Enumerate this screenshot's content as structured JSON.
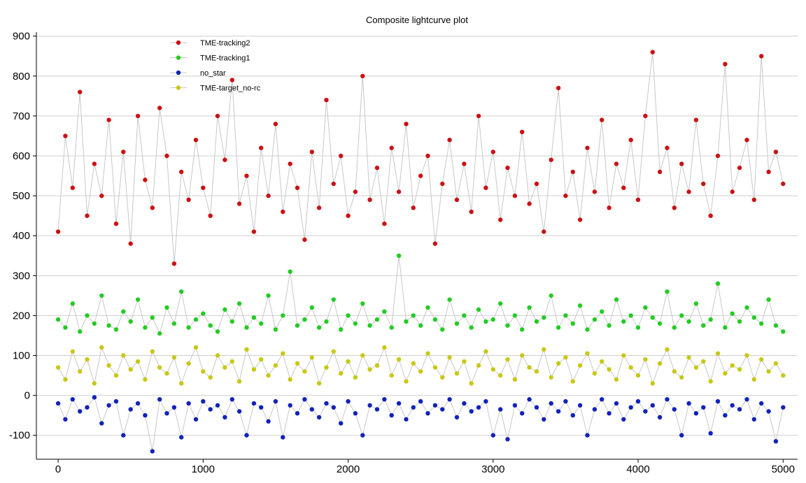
{
  "chart_data": {
    "type": "scatter",
    "title": "Composite lightcurve plot",
    "xlabel": "",
    "ylabel": "",
    "xlim": [
      -150,
      5100
    ],
    "ylim": [
      -160,
      910
    ],
    "x_ticks": [
      0,
      1000,
      2000,
      3000,
      4000,
      5000
    ],
    "y_ticks": [
      -100,
      0,
      100,
      200,
      300,
      400,
      500,
      600,
      700,
      800,
      900
    ],
    "grid": "horizontal",
    "legend_position": "top-left",
    "connecting_line_color": "#c8c8c8",
    "series": [
      {
        "name": "TME-tracking2",
        "color": "#cc1111",
        "x": [
          0,
          50,
          100,
          150,
          200,
          250,
          300,
          350,
          400,
          450,
          500,
          550,
          600,
          650,
          700,
          750,
          800,
          850,
          900,
          950,
          1000,
          1050,
          1100,
          1150,
          1200,
          1250,
          1300,
          1350,
          1400,
          1450,
          1500,
          1550,
          1600,
          1650,
          1700,
          1750,
          1800,
          1850,
          1900,
          1950,
          2000,
          2050,
          2100,
          2150,
          2200,
          2250,
          2300,
          2350,
          2400,
          2450,
          2500,
          2550,
          2600,
          2650,
          2700,
          2750,
          2800,
          2850,
          2900,
          2950,
          3000,
          3050,
          3100,
          3150,
          3200,
          3250,
          3300,
          3350,
          3400,
          3450,
          3500,
          3550,
          3600,
          3650,
          3700,
          3750,
          3800,
          3850,
          3900,
          3950,
          4000,
          4050,
          4100,
          4150,
          4200,
          4250,
          4300,
          4350,
          4400,
          4450,
          4500,
          4550,
          4600,
          4650,
          4700,
          4750,
          4800,
          4850,
          4900,
          4950,
          5000
        ],
        "y": [
          410,
          650,
          520,
          760,
          450,
          580,
          500,
          690,
          430,
          610,
          380,
          700,
          540,
          470,
          720,
          600,
          330,
          560,
          490,
          640,
          520,
          450,
          700,
          590,
          790,
          480,
          550,
          410,
          620,
          500,
          680,
          460,
          580,
          520,
          390,
          610,
          470,
          740,
          530,
          600,
          450,
          510,
          800,
          490,
          570,
          430,
          620,
          510,
          680,
          470,
          550,
          600,
          380,
          530,
          640,
          490,
          580,
          460,
          700,
          520,
          610,
          440,
          570,
          500,
          660,
          480,
          530,
          410,
          590,
          770,
          500,
          560,
          440,
          620,
          510,
          690,
          470,
          580,
          520,
          640,
          490,
          700,
          860,
          560,
          620,
          470,
          580,
          510,
          690,
          530,
          450,
          600,
          830,
          510,
          570,
          640,
          490,
          850,
          560,
          610,
          530
        ]
      },
      {
        "name": "TME-tracking1",
        "color": "#22cc22",
        "x": [
          0,
          50,
          100,
          150,
          200,
          250,
          300,
          350,
          400,
          450,
          500,
          550,
          600,
          650,
          700,
          750,
          800,
          850,
          900,
          950,
          1000,
          1050,
          1100,
          1150,
          1200,
          1250,
          1300,
          1350,
          1400,
          1450,
          1500,
          1550,
          1600,
          1650,
          1700,
          1750,
          1800,
          1850,
          1900,
          1950,
          2000,
          2050,
          2100,
          2150,
          2200,
          2250,
          2300,
          2350,
          2400,
          2450,
          2500,
          2550,
          2600,
          2650,
          2700,
          2750,
          2800,
          2850,
          2900,
          2950,
          3000,
          3050,
          3100,
          3150,
          3200,
          3250,
          3300,
          3350,
          3400,
          3450,
          3500,
          3550,
          3600,
          3650,
          3700,
          3750,
          3800,
          3850,
          3900,
          3950,
          4000,
          4050,
          4100,
          4150,
          4200,
          4250,
          4300,
          4350,
          4400,
          4450,
          4500,
          4550,
          4600,
          4650,
          4700,
          4750,
          4800,
          4850,
          4900,
          4950,
          5000
        ],
        "y": [
          190,
          170,
          230,
          160,
          200,
          180,
          250,
          175,
          165,
          210,
          185,
          240,
          170,
          195,
          155,
          220,
          180,
          260,
          170,
          190,
          205,
          175,
          160,
          215,
          185,
          230,
          170,
          195,
          180,
          250,
          165,
          200,
          310,
          175,
          190,
          220,
          170,
          185,
          240,
          165,
          200,
          180,
          230,
          175,
          190,
          210,
          170,
          350,
          185,
          200,
          175,
          220,
          190,
          165,
          240,
          180,
          200,
          170,
          215,
          185,
          190,
          230,
          175,
          200,
          165,
          220,
          185,
          195,
          250,
          170,
          200,
          180,
          225,
          165,
          190,
          210,
          175,
          240,
          185,
          200,
          170,
          220,
          195,
          180,
          260,
          170,
          200,
          185,
          230,
          175,
          190,
          280,
          170,
          205,
          185,
          220,
          195,
          180,
          240,
          175,
          160
        ]
      },
      {
        "name": "no_star",
        "color": "#1122bb",
        "x": [
          0,
          50,
          100,
          150,
          200,
          250,
          300,
          350,
          400,
          450,
          500,
          550,
          600,
          650,
          700,
          750,
          800,
          850,
          900,
          950,
          1000,
          1050,
          1100,
          1150,
          1200,
          1250,
          1300,
          1350,
          1400,
          1450,
          1500,
          1550,
          1600,
          1650,
          1700,
          1750,
          1800,
          1850,
          1900,
          1950,
          2000,
          2050,
          2100,
          2150,
          2200,
          2250,
          2300,
          2350,
          2400,
          2450,
          2500,
          2550,
          2600,
          2650,
          2700,
          2750,
          2800,
          2850,
          2900,
          2950,
          3000,
          3050,
          3100,
          3150,
          3200,
          3250,
          3300,
          3350,
          3400,
          3450,
          3500,
          3550,
          3600,
          3650,
          3700,
          3750,
          3800,
          3850,
          3900,
          3950,
          4000,
          4050,
          4100,
          4150,
          4200,
          4250,
          4300,
          4350,
          4400,
          4450,
          4500,
          4550,
          4600,
          4650,
          4700,
          4750,
          4800,
          4850,
          4900,
          4950,
          5000
        ],
        "y": [
          -20,
          -60,
          -10,
          -40,
          -30,
          -5,
          -70,
          -25,
          -15,
          -100,
          -35,
          -20,
          -50,
          -140,
          -10,
          -45,
          -30,
          -105,
          -20,
          -60,
          -15,
          -35,
          -25,
          -55,
          -10,
          -40,
          -100,
          -20,
          -30,
          -65,
          -15,
          -105,
          -25,
          -45,
          -10,
          -35,
          -55,
          -20,
          -30,
          -70,
          -15,
          -45,
          -100,
          -25,
          -35,
          -10,
          -50,
          -20,
          -60,
          -30,
          -15,
          -45,
          -25,
          -35,
          -10,
          -55,
          -20,
          -40,
          -30,
          -15,
          -100,
          -35,
          -110,
          -25,
          -45,
          -10,
          -30,
          -60,
          -20,
          -40,
          -15,
          -50,
          -25,
          -100,
          -35,
          -10,
          -45,
          -20,
          -60,
          -30,
          -15,
          -40,
          -25,
          -55,
          -10,
          -35,
          -100,
          -20,
          -45,
          -30,
          -95,
          -15,
          -50,
          -25,
          -35,
          -10,
          -60,
          -20,
          -40,
          -115,
          -30
        ]
      },
      {
        "name": "TME-target_no-rc",
        "color": "#c8c814",
        "x": [
          0,
          50,
          100,
          150,
          200,
          250,
          300,
          350,
          400,
          450,
          500,
          550,
          600,
          650,
          700,
          750,
          800,
          850,
          900,
          950,
          1000,
          1050,
          1100,
          1150,
          1200,
          1250,
          1300,
          1350,
          1400,
          1450,
          1500,
          1550,
          1600,
          1650,
          1700,
          1750,
          1800,
          1850,
          1900,
          1950,
          2000,
          2050,
          2100,
          2150,
          2200,
          2250,
          2300,
          2350,
          2400,
          2450,
          2500,
          2550,
          2600,
          2650,
          2700,
          2750,
          2800,
          2850,
          2900,
          2950,
          3000,
          3050,
          3100,
          3150,
          3200,
          3250,
          3300,
          3350,
          3400,
          3450,
          3500,
          3550,
          3600,
          3650,
          3700,
          3750,
          3800,
          3850,
          3900,
          3950,
          4000,
          4050,
          4100,
          4150,
          4200,
          4250,
          4300,
          4350,
          4400,
          4450,
          4500,
          4550,
          4600,
          4650,
          4700,
          4750,
          4800,
          4850,
          4900,
          4950,
          5000
        ],
        "y": [
          70,
          40,
          110,
          60,
          90,
          30,
          120,
          75,
          50,
          100,
          65,
          85,
          40,
          110,
          70,
          55,
          95,
          30,
          80,
          120,
          60,
          45,
          100,
          70,
          85,
          35,
          115,
          65,
          90,
          50,
          75,
          105,
          40,
          80,
          60,
          95,
          30,
          70,
          110,
          55,
          85,
          45,
          100,
          65,
          75,
          120,
          50,
          90,
          35,
          80,
          60,
          105,
          70,
          45,
          95,
          55,
          85,
          30,
          75,
          110,
          65,
          50,
          90,
          40,
          100,
          70,
          60,
          115,
          45,
          80,
          95,
          35,
          75,
          105,
          55,
          85,
          65,
          40,
          100,
          70,
          50,
          90,
          30,
          80,
          115,
          60,
          45,
          95,
          70,
          85,
          35,
          105,
          55,
          75,
          65,
          100,
          40,
          90,
          60,
          80,
          50
        ]
      }
    ]
  }
}
